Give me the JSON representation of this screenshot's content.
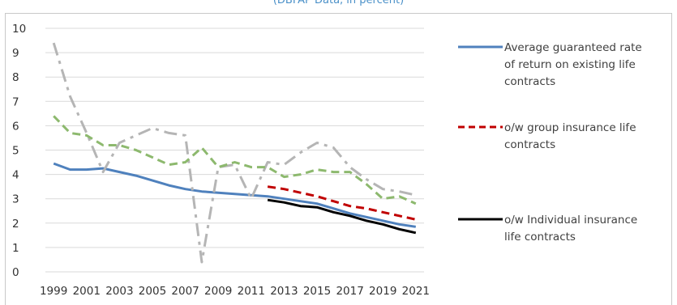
{
  "title": "(DBFAP Data, in percent)",
  "colors": {
    "average": "#4f81bd",
    "group": "#c00000",
    "individual": "#000000",
    "gray_dashdot": "#b5b5b5",
    "green_dashed": "#8db96e",
    "grid": "#d9d9d9"
  },
  "chart_data": {
    "type": "line",
    "title": "(DBFAP Data, in percent)",
    "xlabel": "",
    "ylabel": "",
    "ylim": [
      0,
      10
    ],
    "yticks": [
      "0",
      "1",
      "2",
      "3",
      "4",
      "5",
      "6",
      "7",
      "8",
      "9",
      "10"
    ],
    "x": [
      "1999",
      "2000",
      "2001",
      "2002",
      "2003",
      "2004",
      "2005",
      "2006",
      "2007",
      "2008",
      "2009",
      "2010",
      "2011",
      "2012",
      "2013",
      "2014",
      "2015",
      "2016",
      "2017",
      "2018",
      "2019",
      "2020",
      "2021"
    ],
    "xtick_labels": [
      "1999",
      "2001",
      "2003",
      "2005",
      "2007",
      "2009",
      "2011",
      "2013",
      "2015",
      "2017",
      "2019",
      "2021"
    ],
    "grid": "horizontal",
    "legend_position": "right",
    "series": [
      {
        "name": "Average guaranteed rate of return on existing life contracts",
        "color_key": "average",
        "style": "solid",
        "in_legend": true,
        "values": [
          4.45,
          4.2,
          4.2,
          4.25,
          4.1,
          3.95,
          3.75,
          3.55,
          3.4,
          3.3,
          3.25,
          3.2,
          3.15,
          3.1,
          3.0,
          2.9,
          2.8,
          2.6,
          2.4,
          2.25,
          2.1,
          1.95,
          1.85
        ]
      },
      {
        "name": "o/w group insurance life contracts",
        "color_key": "group",
        "style": "dashed",
        "in_legend": true,
        "values": [
          null,
          null,
          null,
          null,
          null,
          null,
          null,
          null,
          null,
          null,
          null,
          null,
          null,
          3.5,
          3.4,
          3.25,
          3.1,
          2.9,
          2.7,
          2.6,
          2.45,
          2.3,
          2.15
        ]
      },
      {
        "name": "o/w Individual insurance life contracts",
        "color_key": "individual",
        "style": "solid",
        "in_legend": true,
        "values": [
          null,
          null,
          null,
          null,
          null,
          null,
          null,
          null,
          null,
          null,
          null,
          null,
          null,
          2.95,
          2.85,
          2.7,
          2.65,
          2.45,
          2.3,
          2.1,
          1.95,
          1.75,
          1.6
        ]
      },
      {
        "color_key": "gray_dashdot",
        "style": "dashdot",
        "in_legend": false,
        "values": [
          9.4,
          7.2,
          5.7,
          4.1,
          5.3,
          5.6,
          5.9,
          5.7,
          5.6,
          0.4,
          4.3,
          4.4,
          3.0,
          4.5,
          4.4,
          4.9,
          5.3,
          5.1,
          4.3,
          3.8,
          3.4,
          3.3,
          3.15
        ]
      },
      {
        "color_key": "green_dashed",
        "style": "dashed",
        "in_legend": false,
        "values": [
          6.4,
          5.7,
          5.6,
          5.2,
          5.2,
          5.0,
          4.7,
          4.4,
          4.5,
          5.1,
          4.3,
          4.5,
          4.3,
          4.3,
          3.9,
          4.0,
          4.2,
          4.1,
          4.1,
          3.6,
          3.0,
          3.1,
          2.8
        ]
      }
    ],
    "legend": [
      {
        "lines": [
          "Average guaranteed rate",
          "of return on existing life",
          "contracts"
        ],
        "color_key": "average",
        "style": "solid"
      },
      {
        "lines": [
          "o/w group insurance life",
          "contracts"
        ],
        "color_key": "group",
        "style": "dashed"
      },
      {
        "lines": [
          "o/w Individual insurance",
          "life contracts"
        ],
        "color_key": "individual",
        "style": "solid"
      }
    ]
  }
}
